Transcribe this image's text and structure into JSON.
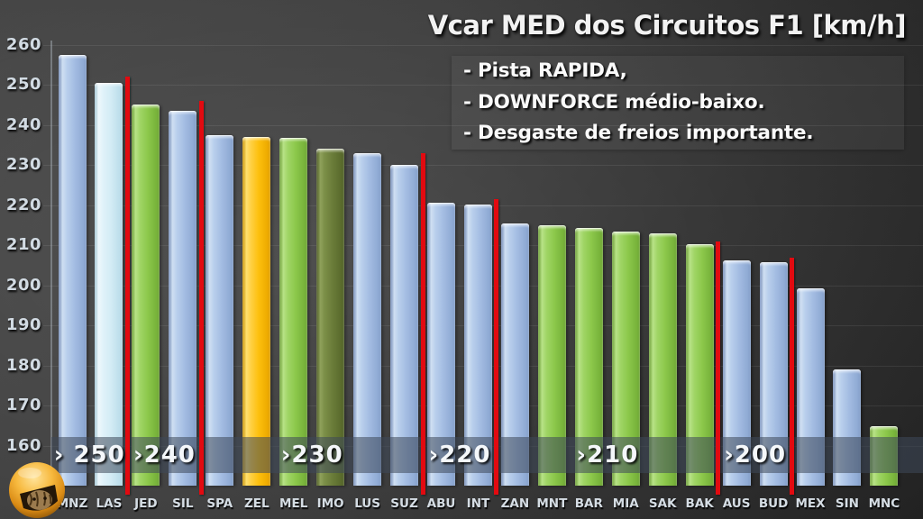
{
  "title": "Vcar MED dos Circuitos F1 [km/h]",
  "notes": {
    "line1": "- Pista RAPIDA,",
    "line2": "- DOWNFORCE médio-baixo.",
    "line3": "- Desgaste de freios importante."
  },
  "chart_data": {
    "type": "bar",
    "title": "Vcar MED dos Circuitos F1 [km/h]",
    "xlabel": "",
    "ylabel": "km/h",
    "ylim": [
      150,
      260
    ],
    "yticks": [
      260,
      250,
      240,
      230,
      220,
      210,
      200,
      190,
      180,
      170,
      160
    ],
    "grid": true,
    "legend": false,
    "categories": [
      "MNZ",
      "LAS",
      "JED",
      "SIL",
      "SPA",
      "ZEL",
      "MEL",
      "IMO",
      "LUS",
      "SUZ",
      "ABU",
      "INT",
      "ZAN",
      "MNT",
      "BAR",
      "MIA",
      "SAK",
      "BAK",
      "AUS",
      "BUD",
      "MEX",
      "SIN",
      "MNC"
    ],
    "values": [
      257.5,
      250.5,
      245.2,
      243.6,
      237.4,
      237.1,
      236.9,
      234.1,
      232.9,
      230.1,
      220.6,
      220.1,
      215.4,
      214.9,
      214.4,
      213.4,
      213.0,
      210.2,
      206.3,
      205.8,
      199.2,
      179.0,
      164.8
    ],
    "bar_colors": [
      "blue",
      "pale",
      "green",
      "blue",
      "blue",
      "yellow",
      "green",
      "olive",
      "blue",
      "blue",
      "blue",
      "blue",
      "blue",
      "green",
      "green",
      "green",
      "green",
      "green",
      "blue",
      "blue",
      "blue",
      "blue",
      "green"
    ],
    "color_map": {
      "blue": "#A3BCE2",
      "pale": "#D3ECF5",
      "green": "#8CC84B",
      "yellow": "#FDC00D",
      "olive": "#6A7C39",
      "separator_red": "#E20A10",
      "band_overlay": "rgba(62,72,90,0.55)"
    },
    "threshold_bands": [
      {
        "label": "> 250",
        "from": 0,
        "to": 1
      },
      {
        "label": ">240",
        "from": 2,
        "to": 3
      },
      {
        "label": ">230",
        "from": 4,
        "to": 9
      },
      {
        "label": ">220",
        "from": 10,
        "to": 11
      },
      {
        "label": ">210",
        "from": 12,
        "to": 17
      },
      {
        "label": ">200",
        "from": 18,
        "to": 19
      }
    ],
    "separators": [
      {
        "after_index": 1,
        "start_value": 252.0
      },
      {
        "after_index": 3,
        "start_value": 246.0
      },
      {
        "after_index": 9,
        "start_value": 233.0
      },
      {
        "after_index": 11,
        "start_value": 221.5
      },
      {
        "after_index": 17,
        "start_value": 211.0
      },
      {
        "after_index": 19,
        "start_value": 207.0
      }
    ]
  },
  "logo": {
    "name": "cat-helmet-logo"
  }
}
